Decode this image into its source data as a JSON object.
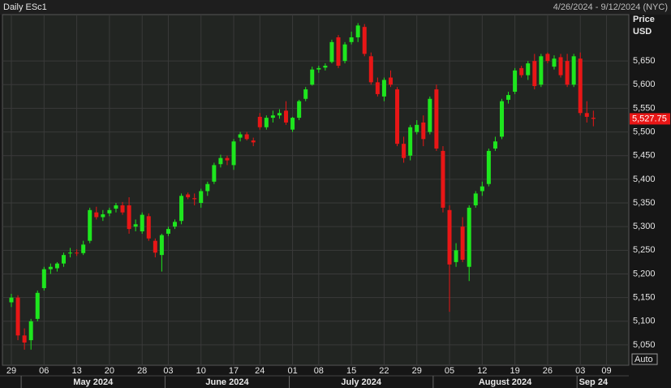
{
  "header": {
    "title": "Daily ESc1",
    "range": "4/26/2024 - 9/12/2024 (NYC)"
  },
  "chart_data": {
    "type": "candlestick",
    "x": [
      "2024-04-29",
      "2024-04-30",
      "2024-05-01",
      "2024-05-02",
      "2024-05-03",
      "2024-05-06",
      "2024-05-07",
      "2024-05-08",
      "2024-05-09",
      "2024-05-10",
      "2024-05-13",
      "2024-05-14",
      "2024-05-15",
      "2024-05-16",
      "2024-05-17",
      "2024-05-20",
      "2024-05-21",
      "2024-05-22",
      "2024-05-23",
      "2024-05-24",
      "2024-05-28",
      "2024-05-29",
      "2024-05-30",
      "2024-05-31",
      "2024-06-03",
      "2024-06-04",
      "2024-06-05",
      "2024-06-06",
      "2024-06-07",
      "2024-06-10",
      "2024-06-11",
      "2024-06-12",
      "2024-06-13",
      "2024-06-14",
      "2024-06-17",
      "2024-06-18",
      "2024-06-20",
      "2024-06-21",
      "2024-06-24",
      "2024-06-25",
      "2024-06-26",
      "2024-06-27",
      "2024-06-28",
      "2024-07-01",
      "2024-07-02",
      "2024-07-03",
      "2024-07-05",
      "2024-07-08",
      "2024-07-09",
      "2024-07-10",
      "2024-07-11",
      "2024-07-12",
      "2024-07-15",
      "2024-07-16",
      "2024-07-17",
      "2024-07-18",
      "2024-07-19",
      "2024-07-22",
      "2024-07-23",
      "2024-07-24",
      "2024-07-25",
      "2024-07-26",
      "2024-07-29",
      "2024-07-30",
      "2024-07-31",
      "2024-08-01",
      "2024-08-02",
      "2024-08-05",
      "2024-08-06",
      "2024-08-07",
      "2024-08-08",
      "2024-08-09",
      "2024-08-12",
      "2024-08-13",
      "2024-08-14",
      "2024-08-15",
      "2024-08-16",
      "2024-08-19",
      "2024-08-20",
      "2024-08-21",
      "2024-08-22",
      "2024-08-23",
      "2024-08-26",
      "2024-08-27",
      "2024-08-28",
      "2024-08-29",
      "2024-08-30",
      "2024-09-03",
      "2024-09-04",
      "2024-09-05",
      "2024-09-06",
      "2024-09-09"
    ],
    "open": [
      5140,
      5150,
      5070,
      5060,
      5105,
      5170,
      5210,
      5212,
      5222,
      5245,
      5245,
      5244,
      5270,
      5330,
      5320,
      5328,
      5338,
      5345,
      5345,
      5300,
      5290,
      5322,
      5270,
      5240,
      5285,
      5300,
      5312,
      5368,
      5360,
      5350,
      5375,
      5395,
      5432,
      5445,
      5430,
      5488,
      5495,
      5482,
      5532,
      5510,
      5530,
      5535,
      5545,
      5505,
      5530,
      5570,
      5600,
      5632,
      5636,
      5648,
      5700,
      5650,
      5690,
      5700,
      5722,
      5660,
      5605,
      5575,
      5615,
      5590,
      5475,
      5450,
      5500,
      5520,
      5500,
      5590,
      5460,
      5335,
      5225,
      5300,
      5215,
      5345,
      5375,
      5390,
      5465,
      5490,
      5568,
      5585,
      5635,
      5620,
      5650,
      5600,
      5665,
      5638,
      5658,
      5650,
      5600,
      5655,
      5540,
      5530,
      null,
      null
    ],
    "high": [
      5158,
      5155,
      5085,
      5105,
      5165,
      5215,
      5222,
      5225,
      5245,
      5255,
      5252,
      5270,
      5340,
      5342,
      5335,
      5340,
      5350,
      5352,
      5362,
      5315,
      5330,
      5328,
      5275,
      5285,
      5300,
      5315,
      5370,
      5372,
      5370,
      5380,
      5395,
      5435,
      5452,
      5450,
      5485,
      5500,
      5500,
      5488,
      5540,
      5535,
      5545,
      5548,
      5565,
      5532,
      5568,
      5595,
      5638,
      5640,
      5645,
      5695,
      5705,
      5690,
      5712,
      5730,
      5728,
      5668,
      5615,
      5615,
      5630,
      5595,
      5490,
      5515,
      5525,
      5535,
      5575,
      5600,
      5470,
      5345,
      5265,
      5320,
      5345,
      5375,
      5395,
      5465,
      5490,
      5570,
      5585,
      5635,
      5640,
      5650,
      5665,
      5665,
      5668,
      5662,
      5665,
      5665,
      5665,
      5668,
      5565,
      5545,
      null,
      null
    ],
    "low": [
      5130,
      5060,
      5040,
      5040,
      5100,
      5165,
      5200,
      5205,
      5215,
      5235,
      5238,
      5240,
      5265,
      5315,
      5312,
      5322,
      5330,
      5325,
      5285,
      5290,
      5285,
      5270,
      5235,
      5205,
      5280,
      5295,
      5305,
      5358,
      5345,
      5340,
      5365,
      5390,
      5425,
      5430,
      5420,
      5480,
      5482,
      5470,
      5505,
      5505,
      5520,
      5528,
      5515,
      5500,
      5525,
      5565,
      5598,
      5625,
      5630,
      5645,
      5635,
      5645,
      5685,
      5690,
      5660,
      5600,
      5575,
      5565,
      5595,
      5470,
      5435,
      5440,
      5495,
      5470,
      5495,
      5460,
      5330,
      5120,
      5215,
      5225,
      5185,
      5340,
      5365,
      5385,
      5460,
      5485,
      5560,
      5580,
      5615,
      5610,
      5590,
      5595,
      5645,
      5632,
      5615,
      5595,
      5595,
      5535,
      5520,
      5512,
      null,
      null
    ],
    "close": [
      5150,
      5070,
      5055,
      5100,
      5160,
      5210,
      5215,
      5222,
      5240,
      5245,
      5244,
      5262,
      5335,
      5320,
      5326,
      5335,
      5345,
      5330,
      5295,
      5305,
      5325,
      5275,
      5245,
      5282,
      5295,
      5310,
      5365,
      5362,
      5358,
      5375,
      5390,
      5430,
      5445,
      5440,
      5480,
      5495,
      5485,
      5478,
      5510,
      5530,
      5535,
      5540,
      5520,
      5530,
      5565,
      5590,
      5632,
      5635,
      5640,
      5690,
      5640,
      5685,
      5700,
      5725,
      5665,
      5605,
      5580,
      5610,
      5600,
      5475,
      5445,
      5510,
      5515,
      5485,
      5570,
      5465,
      5340,
      5220,
      5250,
      5230,
      5340,
      5370,
      5385,
      5460,
      5480,
      5565,
      5578,
      5630,
      5620,
      5645,
      5597,
      5660,
      5650,
      5655,
      5620,
      5600,
      5660,
      5540,
      5532,
      5527.75,
      null,
      null
    ],
    "up_color": "#1ee61e",
    "down_color": "#e81616",
    "ylim": [
      5007,
      5748
    ],
    "yticks": [
      {
        "value": 5050,
        "label": "5,050"
      },
      {
        "value": 5100,
        "label": "5,100"
      },
      {
        "value": 5150,
        "label": "5,150"
      },
      {
        "value": 5200,
        "label": "5,200"
      },
      {
        "value": 5250,
        "label": "5,250"
      },
      {
        "value": 5300,
        "label": "5,300"
      },
      {
        "value": 5350,
        "label": "5,350"
      },
      {
        "value": 5400,
        "label": "5,400"
      },
      {
        "value": 5450,
        "label": "5,450"
      },
      {
        "value": 5500,
        "label": "5,500"
      },
      {
        "value": 5550,
        "label": "5,550"
      },
      {
        "value": 5600,
        "label": "5,600"
      },
      {
        "value": 5650,
        "label": "5,650"
      }
    ],
    "xticks": [
      {
        "value": "2024-04-29",
        "label": "29"
      },
      {
        "value": "2024-05-06",
        "label": "06"
      },
      {
        "value": "2024-05-13",
        "label": "13"
      },
      {
        "value": "2024-05-20",
        "label": "20"
      },
      {
        "value": "2024-05-28",
        "label": "28"
      },
      {
        "value": "2024-06-03",
        "label": "03"
      },
      {
        "value": "2024-06-10",
        "label": "10"
      },
      {
        "value": "2024-06-17",
        "label": "17"
      },
      {
        "value": "2024-06-24",
        "label": "24"
      },
      {
        "value": "2024-07-01",
        "label": "01"
      },
      {
        "value": "2024-07-08",
        "label": "08"
      },
      {
        "value": "2024-07-15",
        "label": "15"
      },
      {
        "value": "2024-07-22",
        "label": "22"
      },
      {
        "value": "2024-07-29",
        "label": "29"
      },
      {
        "value": "2024-08-05",
        "label": "05"
      },
      {
        "value": "2024-08-12",
        "label": "12"
      },
      {
        "value": "2024-08-19",
        "label": "19"
      },
      {
        "value": "2024-08-26",
        "label": "26"
      },
      {
        "value": "2024-09-03",
        "label": "03"
      },
      {
        "value": "2024-09-09",
        "label": "09"
      }
    ],
    "months": [
      {
        "value": "2024-05",
        "label": "May 2024"
      },
      {
        "value": "2024-06",
        "label": "June 2024"
      },
      {
        "value": "2024-07",
        "label": "July 2024"
      },
      {
        "value": "2024-08",
        "label": "August 2024"
      },
      {
        "value": "2024-09",
        "label": "Sep 24"
      }
    ],
    "y_axis_title": "Price",
    "y_axis_unit": "USD",
    "last": {
      "value": 5527.75,
      "label": "5,527.75"
    },
    "scale_mode": "Auto",
    "grid": true
  }
}
